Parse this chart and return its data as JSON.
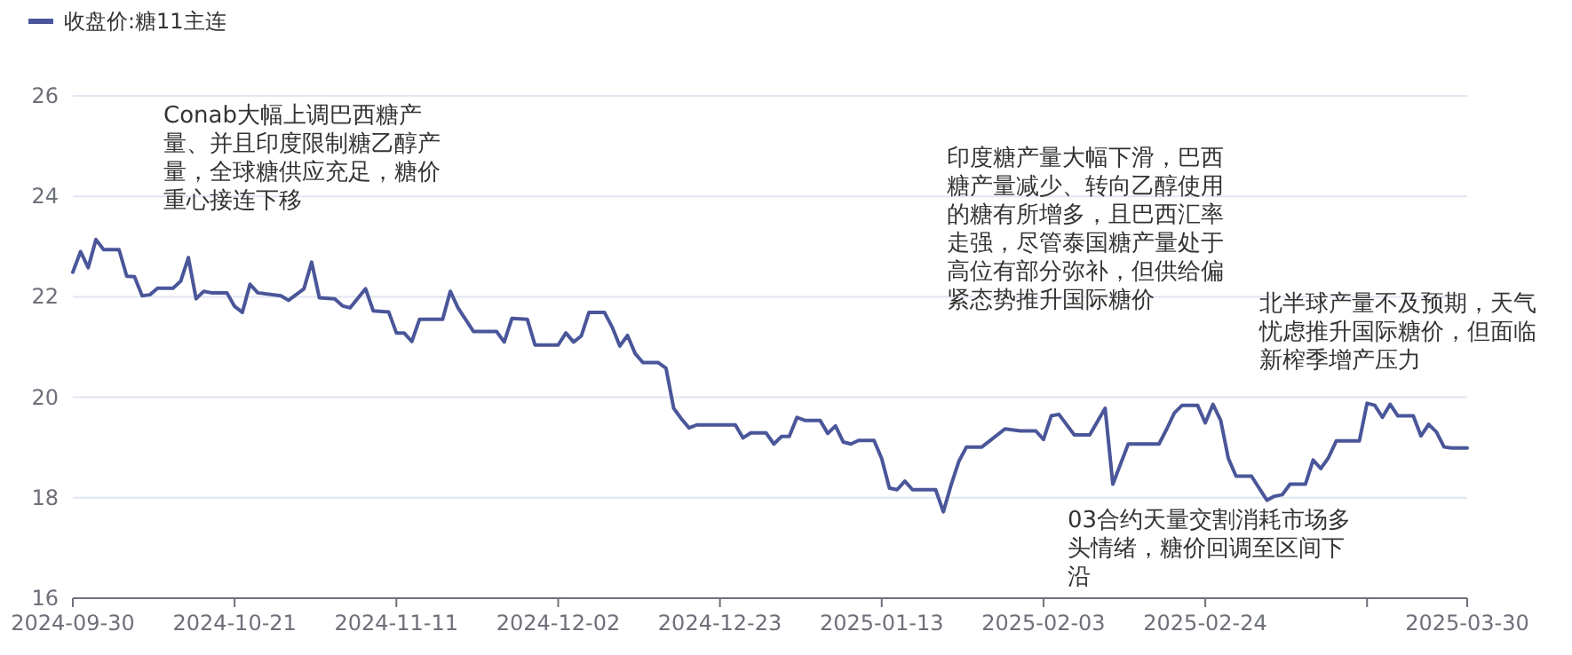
{
  "chart_data": {
    "type": "line",
    "legend": "top left",
    "grid": "y",
    "marker": "none",
    "line_style": "solid",
    "ylim": [
      16,
      26
    ],
    "yticks": [
      16,
      18,
      20,
      22,
      24,
      26
    ],
    "xlim": [
      "2024-09-30",
      "2025-03-30"
    ],
    "xticks": [
      {
        "value": "2024-09-30",
        "label": "2024-09-30"
      },
      {
        "value": "2024-10-21",
        "label": "2024-10-21"
      },
      {
        "value": "2024-11-11",
        "label": "2024-11-11"
      },
      {
        "value": "2024-12-02",
        "label": "2024-12-02"
      },
      {
        "value": "2024-12-23",
        "label": "2024-12-23"
      },
      {
        "value": "2025-01-13",
        "label": "2025-01-13"
      },
      {
        "value": "2025-02-03",
        "label": "2025-02-03"
      },
      {
        "value": "2025-02-24",
        "label": "2025-02-24"
      },
      {
        "value": "2025-03-17",
        "label": null
      },
      {
        "value": "2025-03-30",
        "label": "2025-03-30"
      }
    ],
    "x": [
      "2024-09-30",
      "2024-10-01",
      "2024-10-02",
      "2024-10-03",
      "2024-10-04",
      "2024-10-06",
      "2024-10-07",
      "2024-10-08",
      "2024-10-09",
      "2024-10-10",
      "2024-10-11",
      "2024-10-13",
      "2024-10-14",
      "2024-10-15",
      "2024-10-16",
      "2024-10-17",
      "2024-10-18",
      "2024-10-20",
      "2024-10-21",
      "2024-10-22",
      "2024-10-23",
      "2024-10-24",
      "2024-10-27",
      "2024-10-28",
      "2024-10-30",
      "2024-10-31",
      "2024-11-01",
      "2024-11-03",
      "2024-11-04",
      "2024-11-05",
      "2024-11-07",
      "2024-11-08",
      "2024-11-10",
      "2024-11-11",
      "2024-11-12",
      "2024-11-13",
      "2024-11-14",
      "2024-11-17",
      "2024-11-18",
      "2024-11-19",
      "2024-11-21",
      "2024-11-24",
      "2024-11-25",
      "2024-11-26",
      "2024-11-28",
      "2024-11-29",
      "2024-12-02",
      "2024-12-03",
      "2024-12-04",
      "2024-12-05",
      "2024-12-06",
      "2024-12-08",
      "2024-12-09",
      "2024-12-10",
      "2024-12-11",
      "2024-12-12",
      "2024-12-13",
      "2024-12-15",
      "2024-12-16",
      "2024-12-17",
      "2024-12-18",
      "2024-12-19",
      "2024-12-20",
      "2024-12-25",
      "2024-12-26",
      "2024-12-27",
      "2024-12-29",
      "2024-12-30",
      "2024-12-31",
      "2025-01-01",
      "2025-01-02",
      "2025-01-03",
      "2025-01-05",
      "2025-01-06",
      "2025-01-07",
      "2025-01-08",
      "2025-01-09",
      "2025-01-10",
      "2025-01-12",
      "2025-01-13",
      "2025-01-14",
      "2025-01-15",
      "2025-01-16",
      "2025-01-17",
      "2025-01-20",
      "2025-01-21",
      "2025-01-22",
      "2025-01-23",
      "2025-01-24",
      "2025-01-26",
      "2025-01-27",
      "2025-01-29",
      "2025-01-31",
      "2025-02-02",
      "2025-02-03",
      "2025-02-04",
      "2025-02-05",
      "2025-02-07",
      "2025-02-09",
      "2025-02-11",
      "2025-02-12",
      "2025-02-14",
      "2025-02-18",
      "2025-02-19",
      "2025-02-20",
      "2025-02-21",
      "2025-02-23",
      "2025-02-24",
      "2025-02-25",
      "2025-02-26",
      "2025-02-27",
      "2025-02-28",
      "2025-03-02",
      "2025-03-04",
      "2025-03-05",
      "2025-03-06",
      "2025-03-07",
      "2025-03-09",
      "2025-03-10",
      "2025-03-11",
      "2025-03-12",
      "2025-03-13",
      "2025-03-16",
      "2025-03-17",
      "2025-03-18",
      "2025-03-19",
      "2025-03-20",
      "2025-03-21",
      "2025-03-23",
      "2025-03-24",
      "2025-03-25",
      "2025-03-26",
      "2025-03-27",
      "2025-03-28",
      "2025-03-30"
    ],
    "series": [
      {
        "name": "收盘价:糖11主连",
        "color": "#4a5699",
        "values": [
          22.49,
          22.9,
          22.58,
          23.14,
          22.94,
          22.94,
          22.41,
          22.4,
          22.02,
          22.04,
          22.17,
          22.17,
          22.31,
          22.78,
          21.96,
          22.11,
          22.08,
          22.08,
          21.81,
          21.69,
          22.25,
          22.08,
          22.02,
          21.93,
          22.16,
          22.69,
          21.98,
          21.96,
          21.82,
          21.78,
          22.16,
          21.72,
          21.7,
          21.28,
          21.28,
          21.11,
          21.55,
          21.55,
          22.11,
          21.78,
          21.31,
          21.31,
          21.1,
          21.57,
          21.55,
          21.04,
          21.04,
          21.28,
          21.1,
          21.22,
          21.69,
          21.69,
          21.4,
          21.02,
          21.23,
          20.87,
          20.69,
          20.69,
          20.58,
          19.78,
          19.57,
          19.39,
          19.45,
          19.45,
          19.19,
          19.29,
          19.29,
          19.07,
          19.22,
          19.22,
          19.6,
          19.54,
          19.54,
          19.28,
          19.43,
          19.11,
          19.07,
          19.14,
          19.14,
          18.78,
          18.19,
          18.16,
          18.33,
          18.16,
          18.16,
          17.72,
          18.25,
          18.72,
          19.01,
          19.01,
          19.13,
          19.37,
          19.33,
          19.33,
          19.16,
          19.63,
          19.66,
          19.25,
          19.25,
          19.78,
          18.27,
          19.07,
          19.07,
          19.37,
          19.69,
          19.84,
          19.84,
          19.49,
          19.86,
          19.54,
          18.78,
          18.43,
          18.43,
          17.95,
          18.03,
          18.06,
          18.27,
          18.27,
          18.75,
          18.58,
          18.8,
          19.13,
          19.13,
          19.88,
          19.84,
          19.6,
          19.86,
          19.63,
          19.63,
          19.23,
          19.46,
          19.31,
          19.01,
          18.99,
          18.99
        ]
      }
    ],
    "annotations": [
      "Conab大幅上调巴西糖产量、并且印度限制糖乙醇产量，全球糖供应充足，糖价重心接连下移",
      "印度糖产量大幅下滑，巴西糖产量减少、转向乙醇使用的糖有所增多，且巴西汇率走强，尽管泰国糖产量处于高位有部分弥补，但供给偏紧态势推升国际糖价",
      "03合约天量交割消耗市场多头情绪，糖价回调至区间下沿",
      "北半球产量不及预期，天气忧虑推升国际糖价，但面临新榨季增产压力"
    ]
  }
}
